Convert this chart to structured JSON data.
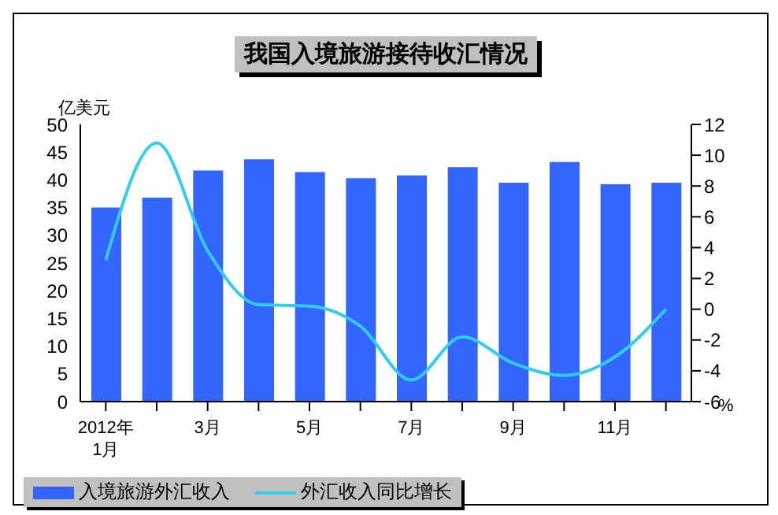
{
  "chart_data": {
    "type": "bar",
    "title": "我国入境旅游接待收汇情况",
    "ylabel": "亿美元",
    "y2label": "%",
    "categories": [
      "2012年 1月",
      null,
      "3月",
      null,
      "5月",
      null,
      "7月",
      null,
      "9月",
      null,
      "11月",
      null
    ],
    "series": [
      {
        "name": "入境旅游外汇收入",
        "color": "#3366ff",
        "values": [
          35,
          36.8,
          41.7,
          43.7,
          41.4,
          40.3,
          40.8,
          42.3,
          39.5,
          43.2,
          39.2,
          39.5
        ]
      },
      {
        "name": "外汇收入同比增长",
        "type": "line",
        "axis": "y2",
        "color": "#33ccee",
        "values": [
          3.2,
          10.8,
          3.8,
          0.3,
          0.2,
          -1.1,
          -4.6,
          -1.8,
          -3.5,
          -4.3,
          -3.1,
          0
        ]
      }
    ],
    "ylim": [
      0,
      50
    ],
    "yticks": [
      0,
      5,
      10,
      15,
      20,
      25,
      30,
      35,
      40,
      45,
      50
    ],
    "y2lim": [
      -6,
      12
    ],
    "y2ticks": [
      -6,
      -4,
      -2,
      0,
      2,
      4,
      6,
      8,
      10,
      12
    ],
    "legend": "bottom left",
    "grid": false,
    "marker": "none"
  }
}
